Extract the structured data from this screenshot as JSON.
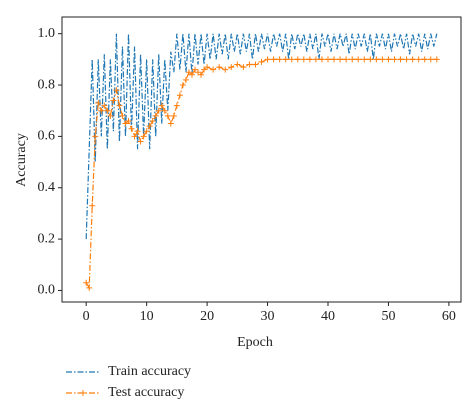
{
  "chart_data": {
    "type": "line",
    "xlabel": "Epoch",
    "ylabel": "Accuracy",
    "xlim": [
      -4,
      62
    ],
    "ylim": [
      -0.045,
      1.065
    ],
    "xticks": [
      0,
      10,
      20,
      30,
      40,
      50,
      60
    ],
    "yticks": [
      {
        "value": 0,
        "label": "0.0"
      },
      0.2,
      0.4,
      0.6,
      0.8,
      {
        "value": 1,
        "label": "1.0"
      }
    ],
    "legend": "below-left",
    "series": [
      {
        "name": "Train accuracy",
        "color": "#1f77b4",
        "style": "dashdot",
        "marker": "none",
        "x": [
          0,
          0.5,
          1,
          1.5,
          2,
          2.5,
          3,
          3.5,
          4,
          4.5,
          5,
          5.5,
          6,
          6.5,
          7,
          7.5,
          8,
          8.5,
          9,
          9.5,
          10,
          10.5,
          11,
          11.5,
          12,
          12.5,
          13,
          13.5,
          14,
          14.5,
          15,
          15.5,
          16,
          16.5,
          17,
          17.5,
          18,
          18.5,
          19,
          19.5,
          20,
          20.5,
          21,
          21.5,
          22,
          22.5,
          23,
          23.5,
          24,
          24.5,
          25,
          25.5,
          26,
          26.5,
          27,
          27.5,
          28,
          28.5,
          29,
          29.5,
          30,
          30.5,
          31,
          31.5,
          32,
          32.5,
          33,
          33.5,
          34,
          34.5,
          35,
          35.5,
          36,
          36.5,
          37,
          37.5,
          38,
          38.5,
          39,
          39.5,
          40,
          40.5,
          41,
          41.5,
          42,
          42.5,
          43,
          43.5,
          44,
          44.5,
          45,
          45.5,
          46,
          46.5,
          47,
          47.5,
          48,
          48.5,
          49,
          49.5,
          50,
          50.5,
          51,
          51.5,
          52,
          52.5,
          53,
          53.5,
          54,
          54.5,
          55,
          55.5,
          56,
          56.5,
          57,
          57.5,
          58
        ],
        "values": [
          0.2,
          0.55,
          0.9,
          0.5,
          0.9,
          0.6,
          0.92,
          0.55,
          0.9,
          0.62,
          1.0,
          0.58,
          0.95,
          0.6,
          1.0,
          0.62,
          0.95,
          0.55,
          0.92,
          0.6,
          0.9,
          0.55,
          0.9,
          0.6,
          0.92,
          0.65,
          0.9,
          0.7,
          0.93,
          0.85,
          1.0,
          0.86,
          1.0,
          0.85,
          1.0,
          0.84,
          1.0,
          0.88,
          1.0,
          0.88,
          1.0,
          0.9,
          1.0,
          0.9,
          1.0,
          0.92,
          1.0,
          0.9,
          1.0,
          0.93,
          1.0,
          0.92,
          1.0,
          0.93,
          1.0,
          0.9,
          1.0,
          0.93,
          1.0,
          0.94,
          1.0,
          0.93,
          1.0,
          0.95,
          1.0,
          0.93,
          1.0,
          0.9,
          1.0,
          0.94,
          1.0,
          0.95,
          1.0,
          0.93,
          1.0,
          0.94,
          1.0,
          0.9,
          1.0,
          0.95,
          1.0,
          0.93,
          1.0,
          0.94,
          1.0,
          0.95,
          1.0,
          0.92,
          1.0,
          0.94,
          1.0,
          0.95,
          1.0,
          0.93,
          1.0,
          0.9,
          1.0,
          0.95,
          1.0,
          0.94,
          1.0,
          0.93,
          1.0,
          0.95,
          1.0,
          0.94,
          1.0,
          0.92,
          1.0,
          0.95,
          1.0,
          0.93,
          1.0,
          0.94,
          1.0,
          0.95,
          1.0
        ]
      },
      {
        "name": "Test accuracy",
        "color": "#ff7f0e",
        "style": "dashdot",
        "marker": "+",
        "x": [
          0,
          0.5,
          1,
          1.5,
          2,
          2.5,
          3,
          3.5,
          4,
          4.5,
          5,
          5.5,
          6,
          6.5,
          7,
          7.5,
          8,
          8.5,
          9,
          9.5,
          10,
          10.5,
          11,
          11.5,
          12,
          12.5,
          13,
          13.5,
          14,
          14.5,
          15,
          15.5,
          16,
          16.5,
          17,
          17.5,
          18,
          18.5,
          19,
          19.5,
          20,
          21,
          22,
          23,
          24,
          25,
          26,
          27,
          28,
          29,
          30,
          31,
          32,
          33,
          34,
          35,
          36,
          37,
          38,
          39,
          40,
          41,
          42,
          43,
          44,
          45,
          46,
          47,
          48,
          49,
          50,
          51,
          52,
          53,
          54,
          55,
          56,
          57,
          58
        ],
        "values": [
          0.03,
          0.01,
          0.33,
          0.6,
          0.73,
          0.7,
          0.72,
          0.7,
          0.68,
          0.74,
          0.78,
          0.72,
          0.68,
          0.65,
          0.66,
          0.63,
          0.6,
          0.62,
          0.58,
          0.6,
          0.62,
          0.64,
          0.66,
          0.68,
          0.7,
          0.72,
          0.7,
          0.68,
          0.65,
          0.68,
          0.72,
          0.76,
          0.8,
          0.82,
          0.85,
          0.84,
          0.86,
          0.85,
          0.84,
          0.86,
          0.87,
          0.86,
          0.87,
          0.86,
          0.87,
          0.88,
          0.87,
          0.88,
          0.88,
          0.89,
          0.9,
          0.9,
          0.9,
          0.9,
          0.9,
          0.9,
          0.9,
          0.9,
          0.9,
          0.9,
          0.9,
          0.9,
          0.9,
          0.9,
          0.9,
          0.9,
          0.9,
          0.9,
          0.9,
          0.9,
          0.9,
          0.9,
          0.9,
          0.9,
          0.9,
          0.9,
          0.9,
          0.9,
          0.9
        ]
      }
    ]
  }
}
